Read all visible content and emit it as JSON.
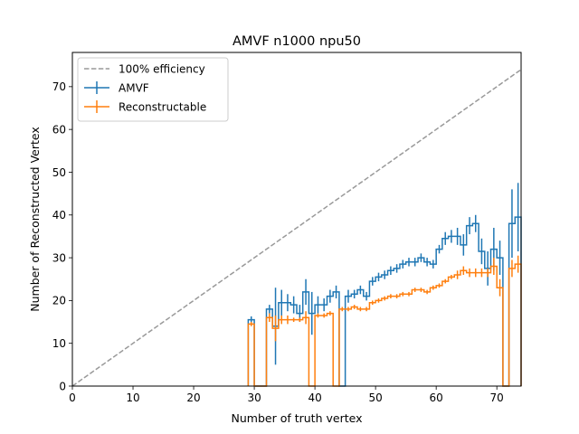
{
  "chart_data": {
    "type": "line",
    "title": "AMVF n1000 npu50",
    "xlabel": "Number of truth vertex",
    "ylabel": "Number of Reconstructed Vertex",
    "xlim": [
      0,
      74
    ],
    "ylim": [
      0,
      78
    ],
    "xticks": [
      0,
      10,
      20,
      30,
      40,
      50,
      60,
      70
    ],
    "yticks": [
      0,
      10,
      20,
      30,
      40,
      50,
      60,
      70
    ],
    "grid": false,
    "legend_position": "top-left",
    "series": [
      {
        "name": "100% efficiency",
        "style": "dashed",
        "color": "#999999",
        "x": [
          0,
          74
        ],
        "y": [
          0,
          74
        ]
      },
      {
        "name": "AMVF",
        "style": "step-errorbar",
        "color": "#1f77b4",
        "x": [
          29,
          30,
          31,
          32,
          33,
          34,
          35,
          36,
          37,
          38,
          39,
          40,
          41,
          42,
          43,
          44,
          45,
          46,
          47,
          48,
          49,
          50,
          51,
          52,
          53,
          54,
          55,
          56,
          57,
          58,
          59,
          60,
          61,
          62,
          63,
          64,
          65,
          66,
          67,
          68,
          69,
          70,
          71,
          72,
          73
        ],
        "y": [
          15.5,
          0,
          0,
          18,
          14,
          19.5,
          19.5,
          19,
          17,
          22,
          17,
          19,
          19,
          21,
          22,
          0,
          21,
          21.5,
          22.5,
          21,
          24.5,
          25.5,
          26,
          27,
          27.5,
          28.5,
          29,
          29,
          30,
          29,
          28.5,
          32,
          34.5,
          35,
          35,
          33,
          37.5,
          38,
          31.5,
          27.5,
          32,
          30,
          0,
          38,
          39.5
        ],
        "yerr": [
          0.8,
          0,
          0,
          1,
          9,
          3,
          2,
          2,
          2,
          3,
          5,
          2,
          1.5,
          1.5,
          1.5,
          0,
          1.5,
          1,
          1,
          1,
          1,
          1,
          1,
          1,
          1,
          1,
          1,
          1,
          1,
          1,
          1,
          1,
          1.5,
          1.5,
          2,
          2.5,
          2,
          2,
          3,
          4,
          5,
          4,
          0,
          8,
          8
        ]
      },
      {
        "name": "Reconstructable",
        "style": "step-errorbar",
        "color": "#ff7f0e",
        "x": [
          29,
          30,
          31,
          32,
          33,
          34,
          35,
          36,
          37,
          38,
          39,
          40,
          41,
          42,
          43,
          44,
          45,
          46,
          47,
          48,
          49,
          50,
          51,
          52,
          53,
          54,
          55,
          56,
          57,
          58,
          59,
          60,
          61,
          62,
          63,
          64,
          65,
          66,
          67,
          68,
          69,
          70,
          71,
          72,
          73
        ],
        "y": [
          14.5,
          0,
          0,
          16,
          13.5,
          15.5,
          15.5,
          15.5,
          15.5,
          16,
          0,
          16.5,
          16.5,
          17,
          0,
          18,
          18,
          18.5,
          18,
          18,
          19.5,
          20,
          20.5,
          21,
          21,
          21.5,
          21.5,
          22.5,
          22.5,
          22,
          23,
          23.5,
          24.5,
          25.5,
          26,
          27,
          26.5,
          26.5,
          26.5,
          26.5,
          28,
          23,
          0,
          27.5,
          28.5
        ],
        "yerr": [
          0.5,
          0,
          0,
          1,
          3,
          1,
          1,
          0.5,
          0.5,
          1.5,
          0,
          0.5,
          0.5,
          0.5,
          0,
          0.5,
          0.5,
          0.5,
          0.5,
          0.5,
          0.5,
          0.5,
          0.5,
          0.5,
          0.5,
          0.5,
          0.5,
          0.5,
          0.5,
          0.5,
          0.5,
          0.5,
          0.5,
          0.5,
          1,
          1,
          1,
          1,
          1,
          1,
          2,
          2,
          0,
          2,
          2
        ]
      }
    ]
  }
}
